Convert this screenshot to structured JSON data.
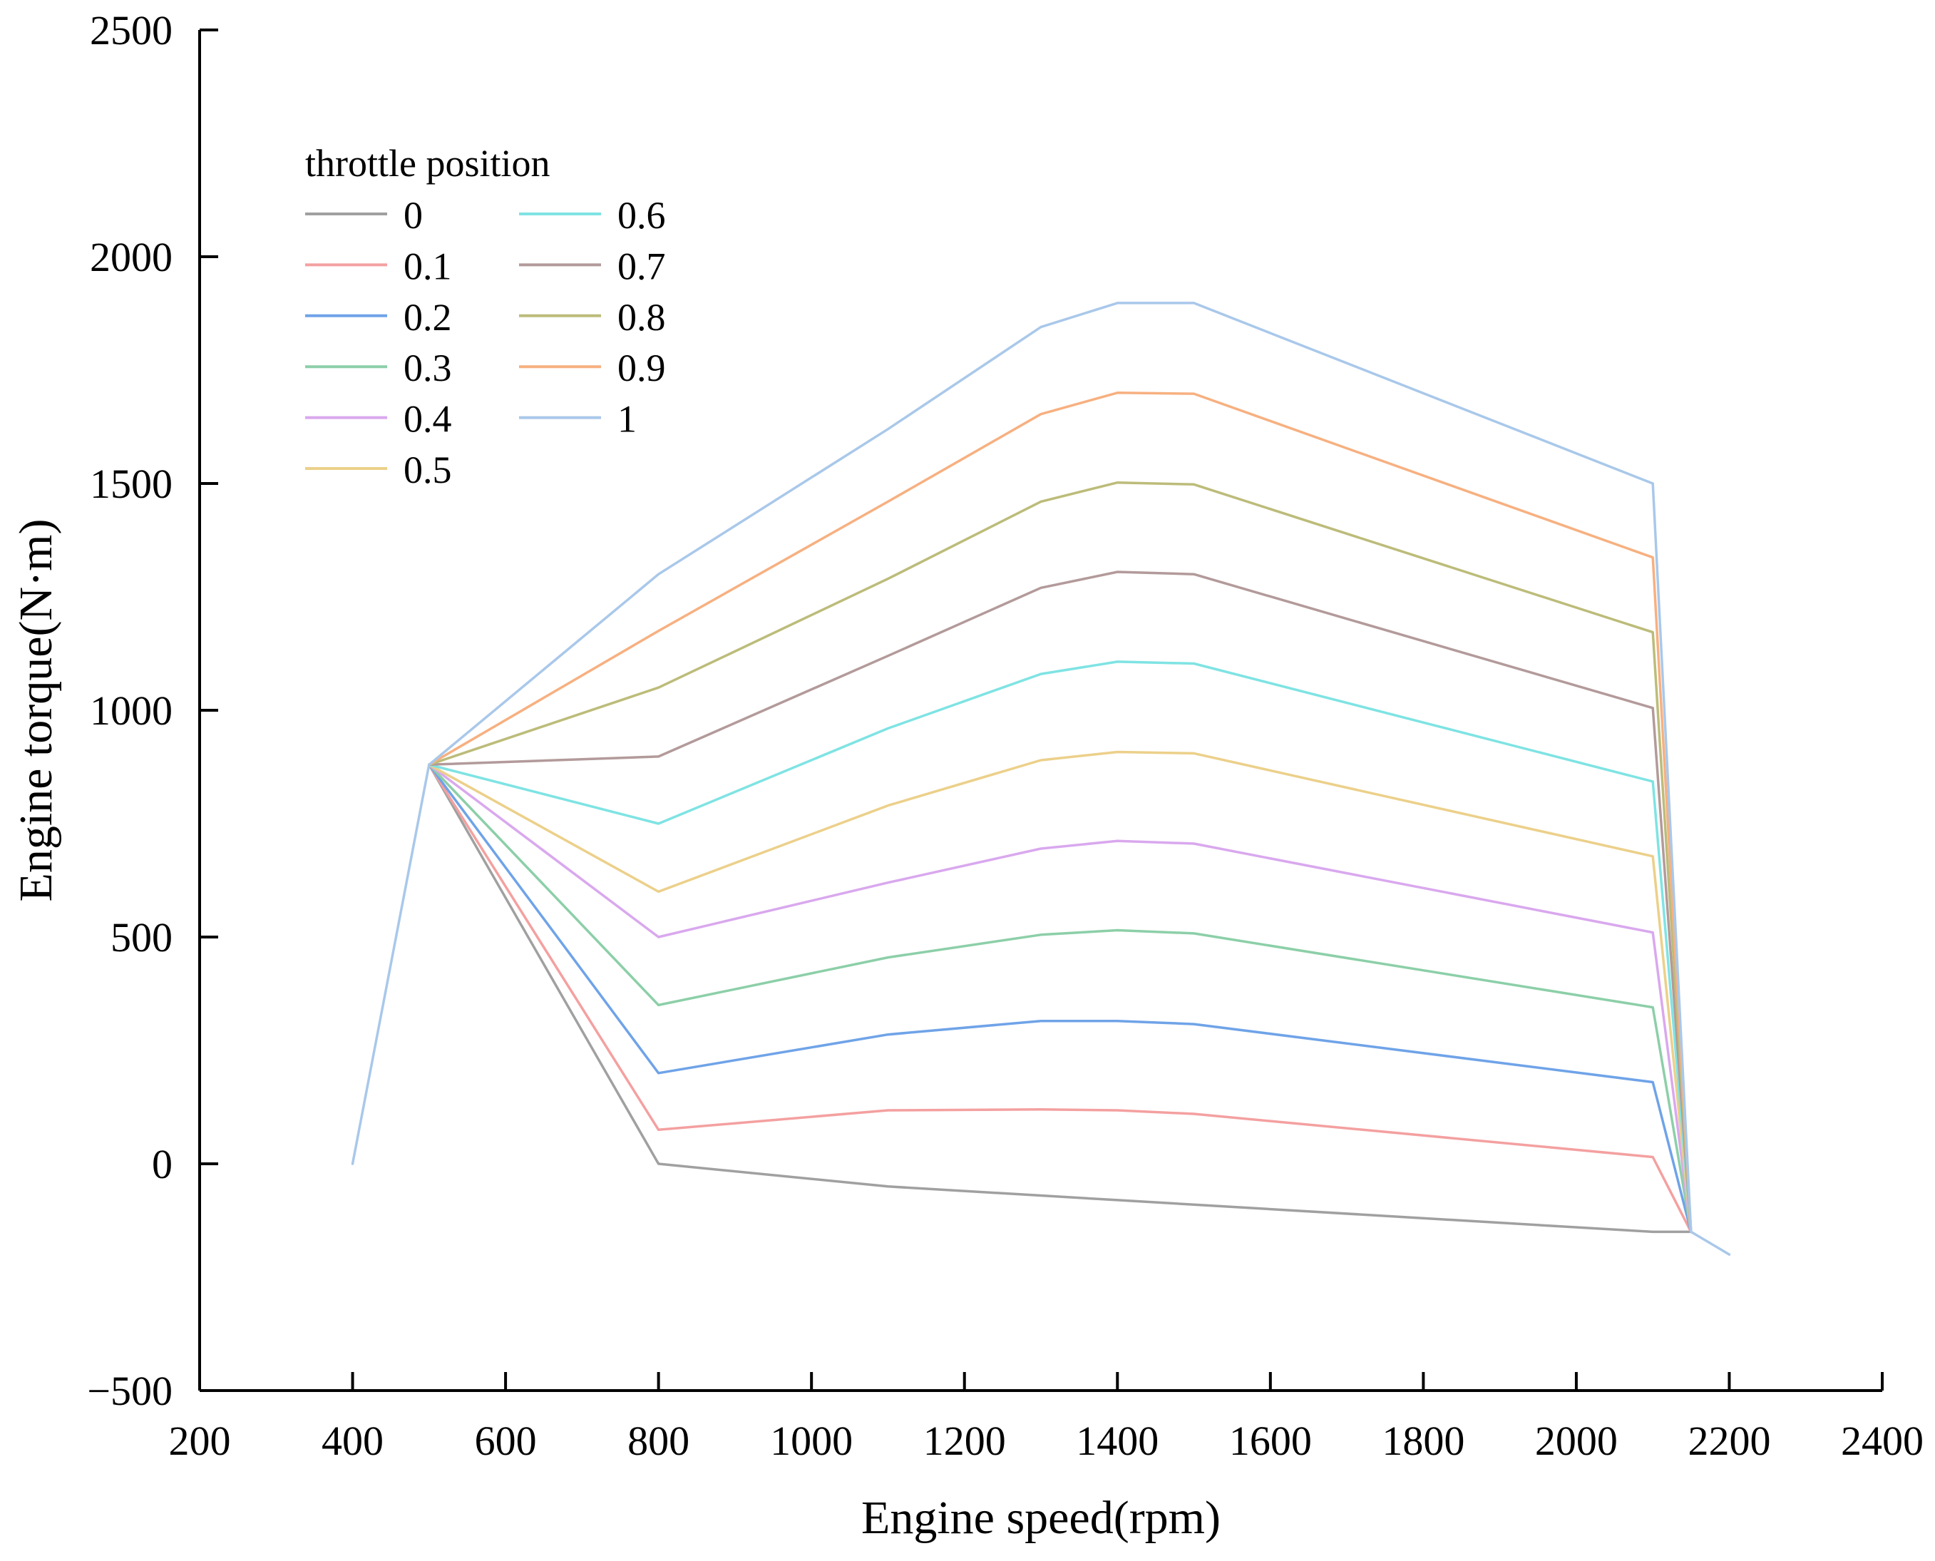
{
  "chart_data": {
    "type": "line",
    "title": "",
    "xlabel": "Engine speed(rpm)",
    "ylabel": "Engine torque(N·m)",
    "xlim": [
      200,
      2400
    ],
    "ylim": [
      -500,
      2500
    ],
    "xticks": [
      "200",
      "400",
      "600",
      "800",
      "1000",
      "1200",
      "1400",
      "1600",
      "1800",
      "2000",
      "2200",
      "2400"
    ],
    "yticks": [
      "−500",
      "0",
      "500",
      "1000",
      "1500",
      "2000",
      "2500"
    ],
    "legend": {
      "title": "throttle position",
      "placement": "top-left"
    },
    "series": [
      {
        "name": "0",
        "color": "#a0a0a0",
        "x": [
          500,
          800,
          1100,
          1300,
          1400,
          1500,
          2100,
          2150
        ],
        "y": [
          880,
          0,
          -50,
          -70,
          -80,
          -90,
          -150,
          -150
        ]
      },
      {
        "name": "0.1",
        "color": "#f4a0a0",
        "x": [
          500,
          800,
          1100,
          1300,
          1400,
          1500,
          2100,
          2150
        ],
        "y": [
          880,
          75,
          118,
          120,
          118,
          110,
          15,
          -150
        ]
      },
      {
        "name": "0.2",
        "color": "#6fa3e8",
        "x": [
          500,
          800,
          1100,
          1300,
          1400,
          1500,
          2100,
          2150
        ],
        "y": [
          880,
          200,
          285,
          315,
          315,
          308,
          180,
          -150
        ]
      },
      {
        "name": "0.3",
        "color": "#8ccfa8",
        "x": [
          500,
          800,
          1100,
          1300,
          1400,
          1500,
          2100,
          2150
        ],
        "y": [
          880,
          350,
          455,
          505,
          515,
          508,
          345,
          -150
        ]
      },
      {
        "name": "0.4",
        "color": "#d9a8ee",
        "x": [
          500,
          800,
          1100,
          1300,
          1400,
          1500,
          2100,
          2150
        ],
        "y": [
          880,
          500,
          620,
          695,
          712,
          706,
          510,
          -150
        ]
      },
      {
        "name": "0.5",
        "color": "#ecd08a",
        "x": [
          500,
          800,
          1100,
          1300,
          1400,
          1500,
          2100,
          2150
        ],
        "y": [
          880,
          600,
          790,
          890,
          908,
          905,
          678,
          -150
        ]
      },
      {
        "name": "0.6",
        "color": "#7fe3e3",
        "x": [
          500,
          800,
          1100,
          1300,
          1400,
          1500,
          2100,
          2150
        ],
        "y": [
          880,
          750,
          960,
          1080,
          1107,
          1103,
          843,
          -150
        ]
      },
      {
        "name": "0.7",
        "color": "#b39a9a",
        "x": [
          500,
          800,
          1100,
          1300,
          1400,
          1500,
          2100,
          2150
        ],
        "y": [
          880,
          898,
          1120,
          1270,
          1305,
          1300,
          1005,
          -150
        ]
      },
      {
        "name": "0.8",
        "color": "#bcbc7a",
        "x": [
          500,
          800,
          1100,
          1300,
          1400,
          1500,
          2100,
          2150
        ],
        "y": [
          880,
          1050,
          1290,
          1460,
          1502,
          1498,
          1172,
          -150
        ]
      },
      {
        "name": "0.9",
        "color": "#f7b080",
        "x": [
          500,
          800,
          1100,
          1300,
          1400,
          1500,
          2100,
          2150
        ],
        "y": [
          880,
          1175,
          1460,
          1653,
          1700,
          1698,
          1337,
          -150
        ]
      },
      {
        "name": "1",
        "color": "#a9c8ea",
        "x": [
          400,
          500,
          800,
          1100,
          1300,
          1400,
          1500,
          2100,
          2150,
          2200
        ],
        "y": [
          0,
          880,
          1300,
          1620,
          1845,
          1898,
          1898,
          1500,
          -150,
          -200
        ]
      }
    ]
  }
}
